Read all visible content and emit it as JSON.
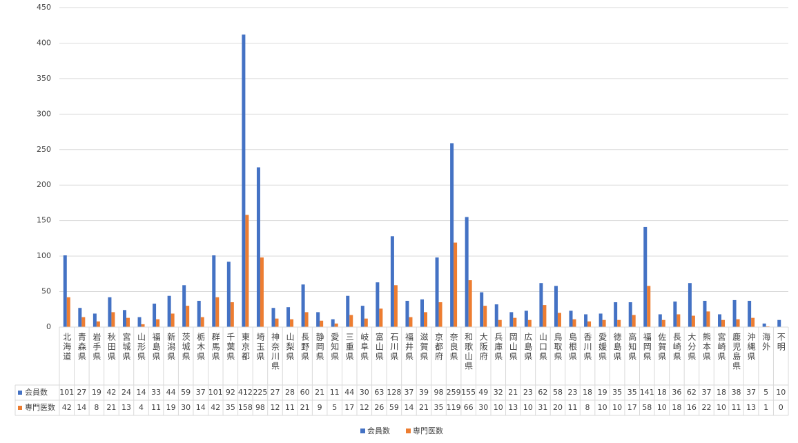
{
  "chart_data": {
    "type": "bar",
    "categories": [
      "北海道",
      "青森県",
      "岩手県",
      "秋田県",
      "宮城県",
      "山形県",
      "福島県",
      "新潟県",
      "茨城県",
      "栃木県",
      "群馬県",
      "千葉県",
      "東京都",
      "埼玉県",
      "神奈川県",
      "山梨県",
      "長野県",
      "静岡県",
      "愛知県",
      "三重県",
      "岐阜県",
      "富山県",
      "石川県",
      "福井県",
      "滋賀県",
      "京都府",
      "奈良県",
      "和歌山県",
      "大阪府",
      "兵庫県",
      "岡山県",
      "広島県",
      "山口県",
      "鳥取県",
      "島根県",
      "香川県",
      "愛媛県",
      "徳島県",
      "高知県",
      "福岡県",
      "佐賀県",
      "長崎県",
      "大分県",
      "熊本県",
      "宮崎県",
      "鹿児島県",
      "沖縄県",
      "海外",
      "不明"
    ],
    "series": [
      {
        "name": "会員数",
        "color": "#4472c4",
        "values": [
          101,
          27,
          19,
          42,
          24,
          14,
          33,
          44,
          59,
          37,
          101,
          92,
          412,
          225,
          27,
          28,
          60,
          21,
          11,
          44,
          30,
          63,
          128,
          37,
          39,
          98,
          259,
          155,
          49,
          32,
          21,
          23,
          62,
          58,
          23,
          18,
          19,
          35,
          35,
          141,
          18,
          36,
          62,
          37,
          18,
          38,
          37,
          5,
          10
        ]
      },
      {
        "name": "専門医数",
        "color": "#ed7d31",
        "values": [
          42,
          14,
          8,
          21,
          13,
          4,
          11,
          19,
          30,
          14,
          42,
          35,
          158,
          98,
          12,
          11,
          21,
          9,
          5,
          17,
          12,
          26,
          59,
          14,
          21,
          35,
          119,
          66,
          30,
          10,
          13,
          10,
          31,
          20,
          11,
          8,
          10,
          10,
          17,
          58,
          10,
          18,
          16,
          22,
          10,
          11,
          13,
          1,
          0
        ]
      }
    ],
    "ylim": [
      0,
      450
    ],
    "yticks": [
      0,
      50,
      100,
      150,
      200,
      250,
      300,
      350,
      400,
      450
    ],
    "grid": true
  }
}
